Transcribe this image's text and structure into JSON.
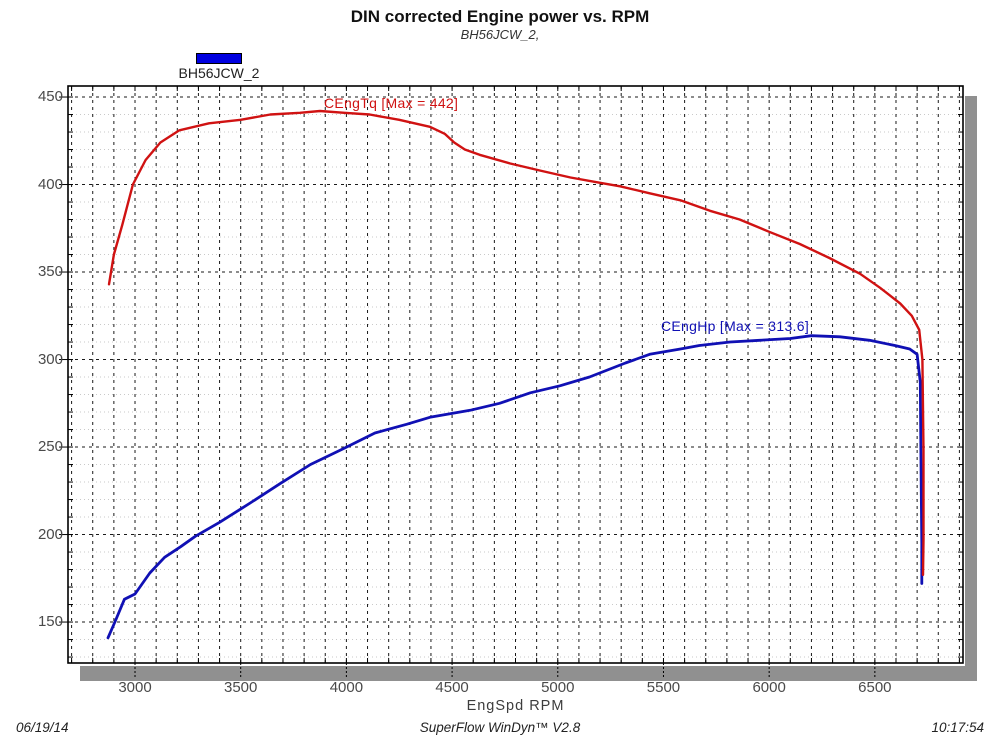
{
  "title": "DIN corrected Engine power vs. RPM",
  "subtitle": "BH56JCW_2,",
  "legend": {
    "label": "BH56JCW_2",
    "swatch_color": "#0000e0"
  },
  "xaxis_title": "EngSpd RPM",
  "footer": {
    "date": "06/19/14",
    "app": "SuperFlow WinDyn™ V2.8",
    "time": "10:17:54"
  },
  "colors": {
    "torque": "#d01212",
    "power": "#1010b4",
    "grid_major": "#1a1a1a",
    "grid_minor_h": "#c9c9c9",
    "shadow": "#909090",
    "border": "#000000"
  },
  "chart_data": {
    "type": "line",
    "title": "DIN corrected Engine power vs. RPM",
    "subtitle": "BH56JCW_2,",
    "xlabel": "EngSpd RPM",
    "ylabel": "",
    "xlim": [
      2683,
      6917
    ],
    "ylim": [
      126.6,
      456.3
    ],
    "x_ticks": [
      3000,
      3500,
      4000,
      4500,
      5000,
      5500,
      6000,
      6500
    ],
    "y_ticks": [
      150,
      200,
      250,
      300,
      350,
      400,
      450
    ],
    "x_minor_step": 100,
    "y_minor_step": 10,
    "grid": "major-dashed-black, minor-vertical-dashed-black-every-100rpm, minor-horizontal-dotted-gray-every-10",
    "legend_position": "top-left-above-plot",
    "series": [
      {
        "name": "CEngTq",
        "label": "CEngTq [Max = 442]",
        "max": 442,
        "color": "#d01212",
        "points": [
          [
            2877,
            343
          ],
          [
            2900,
            360
          ],
          [
            2940,
            377
          ],
          [
            2990,
            400
          ],
          [
            3050,
            414
          ],
          [
            3120,
            424
          ],
          [
            3210,
            431
          ],
          [
            3350,
            435
          ],
          [
            3500,
            437
          ],
          [
            3640,
            440
          ],
          [
            3780,
            441
          ],
          [
            3875,
            442
          ],
          [
            3990,
            441
          ],
          [
            4110,
            440
          ],
          [
            4250,
            437
          ],
          [
            4395,
            433
          ],
          [
            4465,
            429
          ],
          [
            4510,
            424
          ],
          [
            4560,
            420
          ],
          [
            4630,
            417
          ],
          [
            4775,
            412
          ],
          [
            4915,
            408
          ],
          [
            5060,
            404
          ],
          [
            5200,
            401
          ],
          [
            5295,
            399
          ],
          [
            5435,
            395
          ],
          [
            5580,
            391
          ],
          [
            5720,
            385
          ],
          [
            5860,
            380
          ],
          [
            6000,
            373
          ],
          [
            6145,
            366
          ],
          [
            6285,
            358
          ],
          [
            6430,
            349
          ],
          [
            6525,
            341
          ],
          [
            6620,
            332
          ],
          [
            6675,
            325
          ],
          [
            6710,
            317
          ],
          [
            6725,
            300
          ],
          [
            6730,
            248
          ],
          [
            6730,
            197
          ],
          [
            6728,
            177
          ]
        ]
      },
      {
        "name": "CEngHp",
        "label": "CEngHp [Max = 313.6]",
        "max": 313.6,
        "color": "#1010b4",
        "points": [
          [
            2872,
            141
          ],
          [
            2905,
            150
          ],
          [
            2950,
            163
          ],
          [
            3000,
            166
          ],
          [
            3070,
            178
          ],
          [
            3140,
            187
          ],
          [
            3215,
            193
          ],
          [
            3285,
            199
          ],
          [
            3400,
            207
          ],
          [
            3545,
            218
          ],
          [
            3685,
            229
          ],
          [
            3830,
            240
          ],
          [
            3985,
            249
          ],
          [
            4135,
            258
          ],
          [
            4285,
            263
          ],
          [
            4395,
            267
          ],
          [
            4490,
            269
          ],
          [
            4585,
            271
          ],
          [
            4725,
            275
          ],
          [
            4870,
            281
          ],
          [
            5010,
            285
          ],
          [
            5150,
            290
          ],
          [
            5320,
            298
          ],
          [
            5435,
            303
          ],
          [
            5580,
            306
          ],
          [
            5670,
            308
          ],
          [
            5815,
            310
          ],
          [
            5955,
            311
          ],
          [
            6100,
            312
          ],
          [
            6200,
            313.6
          ],
          [
            6335,
            313
          ],
          [
            6475,
            311
          ],
          [
            6595,
            308
          ],
          [
            6665,
            306
          ],
          [
            6700,
            303
          ],
          [
            6715,
            287
          ],
          [
            6718,
            247
          ],
          [
            6722,
            195
          ],
          [
            6722,
            172
          ]
        ]
      }
    ]
  }
}
